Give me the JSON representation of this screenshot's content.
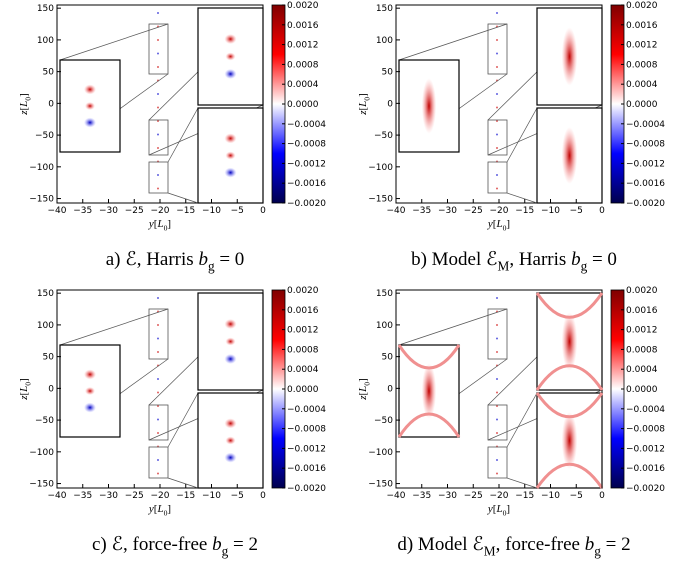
{
  "chart_data": [
    {
      "type": "heatmap",
      "caption": [
        {
          "t": "a) ℰ, Harris "
        },
        {
          "i": "b"
        },
        {
          "sub": "g"
        },
        {
          "t": " = 0"
        }
      ],
      "xlabel": [
        {
          "i": "y"
        },
        {
          "t": "["
        },
        {
          "i": "L"
        },
        {
          "sub": "0"
        },
        {
          "t": "]"
        }
      ],
      "ylabel": [
        {
          "i": "z"
        },
        {
          "t": "["
        },
        {
          "i": "L"
        },
        {
          "sub": "0"
        },
        {
          "t": "]"
        }
      ],
      "xlim": [
        -40,
        0
      ],
      "ylim": [
        -157,
        155
      ],
      "xticks": [
        {
          "value": -40,
          "label": "−40"
        },
        {
          "value": -35,
          "label": "−35"
        },
        {
          "value": -30,
          "label": "−30"
        },
        {
          "value": -25,
          "label": "−25"
        },
        {
          "value": -20,
          "label": "−20"
        },
        {
          "value": -15,
          "label": "−15"
        },
        {
          "value": -10,
          "label": "−10"
        },
        {
          "value": -5,
          "label": "−5"
        },
        0
      ],
      "yticks": [
        {
          "value": -150,
          "label": "−150"
        },
        {
          "value": -100,
          "label": "−100"
        },
        {
          "value": -50,
          "label": "−50"
        },
        0,
        50,
        100,
        150
      ],
      "clim": [
        -0.002,
        0.002
      ],
      "cticks": [
        {
          "value": 0.002,
          "label": "0.0020"
        },
        0.0016,
        0.0012,
        0.0008,
        0.0004,
        {
          "value": 0,
          "label": "0.0000"
        },
        {
          "value": -0.0004,
          "label": "−0.0004"
        },
        {
          "value": -0.0008,
          "label": "−0.0008"
        },
        {
          "value": -0.0012,
          "label": "−0.0012"
        },
        {
          "value": -0.0016,
          "label": "−0.0016"
        },
        {
          "value": -0.002,
          "label": "−0.0020"
        }
      ]
    },
    {
      "type": "heatmap",
      "caption": [
        {
          "t": "b) Model ℰ"
        },
        {
          "sub": "M"
        },
        {
          "t": ", Harris "
        },
        {
          "i": "b"
        },
        {
          "sub": "g"
        },
        {
          "t": " = 0"
        }
      ],
      "xlabel": [
        {
          "i": "y"
        },
        {
          "t": "["
        },
        {
          "i": "L"
        },
        {
          "sub": "0"
        },
        {
          "t": "]"
        }
      ],
      "ylabel": [
        {
          "i": "z"
        },
        {
          "t": "["
        },
        {
          "i": "L"
        },
        {
          "sub": "0"
        },
        {
          "t": "]"
        }
      ],
      "xlim": [
        -40,
        0
      ],
      "ylim": [
        -157,
        155
      ],
      "xticks": [
        {
          "value": -40,
          "label": "−40"
        },
        {
          "value": -35,
          "label": "−35"
        },
        {
          "value": -30,
          "label": "−30"
        },
        {
          "value": -25,
          "label": "−25"
        },
        {
          "value": -20,
          "label": "−20"
        },
        {
          "value": -15,
          "label": "−15"
        },
        {
          "value": -10,
          "label": "−10"
        },
        {
          "value": -5,
          "label": "−5"
        },
        0
      ],
      "yticks": [
        {
          "value": -150,
          "label": "−150"
        },
        {
          "value": -100,
          "label": "−100"
        },
        {
          "value": -50,
          "label": "−50"
        },
        0,
        50,
        100,
        150
      ],
      "clim": [
        -0.002,
        0.002
      ],
      "cticks": [
        {
          "value": 0.002,
          "label": "0.0020"
        },
        0.0016,
        0.0012,
        0.0008,
        0.0004,
        {
          "value": 0,
          "label": "0.0000"
        },
        {
          "value": -0.0004,
          "label": "−0.0004"
        },
        {
          "value": -0.0008,
          "label": "−0.0008"
        },
        {
          "value": -0.0012,
          "label": "−0.0012"
        },
        {
          "value": -0.0016,
          "label": "−0.0016"
        },
        {
          "value": -0.002,
          "label": "−0.0020"
        }
      ]
    },
    {
      "type": "heatmap",
      "caption": [
        {
          "t": "c) ℰ, force-free "
        },
        {
          "i": "b"
        },
        {
          "sub": "g"
        },
        {
          "t": " = 2"
        }
      ],
      "xlabel": [
        {
          "i": "y"
        },
        {
          "t": "["
        },
        {
          "i": "L"
        },
        {
          "sub": "0"
        },
        {
          "t": "]"
        }
      ],
      "ylabel": [
        {
          "i": "z"
        },
        {
          "t": "["
        },
        {
          "i": "L"
        },
        {
          "sub": "0"
        },
        {
          "t": "]"
        }
      ],
      "xlim": [
        -40,
        0
      ],
      "ylim": [
        -157,
        155
      ],
      "xticks": [
        {
          "value": -40,
          "label": "−40"
        },
        {
          "value": -35,
          "label": "−35"
        },
        {
          "value": -30,
          "label": "−30"
        },
        {
          "value": -25,
          "label": "−25"
        },
        {
          "value": -20,
          "label": "−20"
        },
        {
          "value": -15,
          "label": "−15"
        },
        {
          "value": -10,
          "label": "−10"
        },
        {
          "value": -5,
          "label": "−5"
        },
        0
      ],
      "yticks": [
        {
          "value": -150,
          "label": "−150"
        },
        {
          "value": -100,
          "label": "−100"
        },
        {
          "value": -50,
          "label": "−50"
        },
        0,
        50,
        100,
        150
      ],
      "clim": [
        -0.002,
        0.002
      ],
      "cticks": [
        {
          "value": 0.002,
          "label": "0.0020"
        },
        0.0016,
        0.0012,
        0.0008,
        0.0004,
        {
          "value": 0,
          "label": "0.0000"
        },
        {
          "value": -0.0004,
          "label": "−0.0004"
        },
        {
          "value": -0.0008,
          "label": "−0.0008"
        },
        {
          "value": -0.0012,
          "label": "−0.0012"
        },
        {
          "value": -0.0016,
          "label": "−0.0016"
        },
        {
          "value": -0.002,
          "label": "−0.0020"
        }
      ]
    },
    {
      "type": "heatmap",
      "caption": [
        {
          "t": "d) Model ℰ"
        },
        {
          "sub": "M"
        },
        {
          "t": ", force-free "
        },
        {
          "i": "b"
        },
        {
          "sub": "g"
        },
        {
          "t": " = 2"
        }
      ],
      "xlabel": [
        {
          "i": "y"
        },
        {
          "t": "["
        },
        {
          "i": "L"
        },
        {
          "sub": "0"
        },
        {
          "t": "]"
        }
      ],
      "ylabel": [
        {
          "i": "z"
        },
        {
          "t": "["
        },
        {
          "i": "L"
        },
        {
          "sub": "0"
        },
        {
          "t": "]"
        }
      ],
      "xlim": [
        -40,
        0
      ],
      "ylim": [
        -157,
        155
      ],
      "xticks": [
        {
          "value": -40,
          "label": "−40"
        },
        {
          "value": -35,
          "label": "−35"
        },
        {
          "value": -30,
          "label": "−30"
        },
        {
          "value": -25,
          "label": "−25"
        },
        {
          "value": -20,
          "label": "−20"
        },
        {
          "value": -15,
          "label": "−15"
        },
        {
          "value": -10,
          "label": "−10"
        },
        {
          "value": -5,
          "label": "−5"
        },
        0
      ],
      "yticks": [
        {
          "value": -150,
          "label": "−150"
        },
        {
          "value": -100,
          "label": "−100"
        },
        {
          "value": -50,
          "label": "−50"
        },
        0,
        50,
        100,
        150
      ],
      "clim": [
        -0.002,
        0.002
      ],
      "cticks": [
        {
          "value": 0.002,
          "label": "0.0020"
        },
        0.0016,
        0.0012,
        0.0008,
        0.0004,
        {
          "value": 0,
          "label": "0.0000"
        },
        {
          "value": -0.0004,
          "label": "−0.0004"
        },
        {
          "value": -0.0008,
          "label": "−0.0008"
        },
        {
          "value": -0.0012,
          "label": "−0.0012"
        },
        {
          "value": -0.0016,
          "label": "−0.0016"
        },
        {
          "value": -0.002,
          "label": "−0.0020"
        }
      ]
    }
  ]
}
